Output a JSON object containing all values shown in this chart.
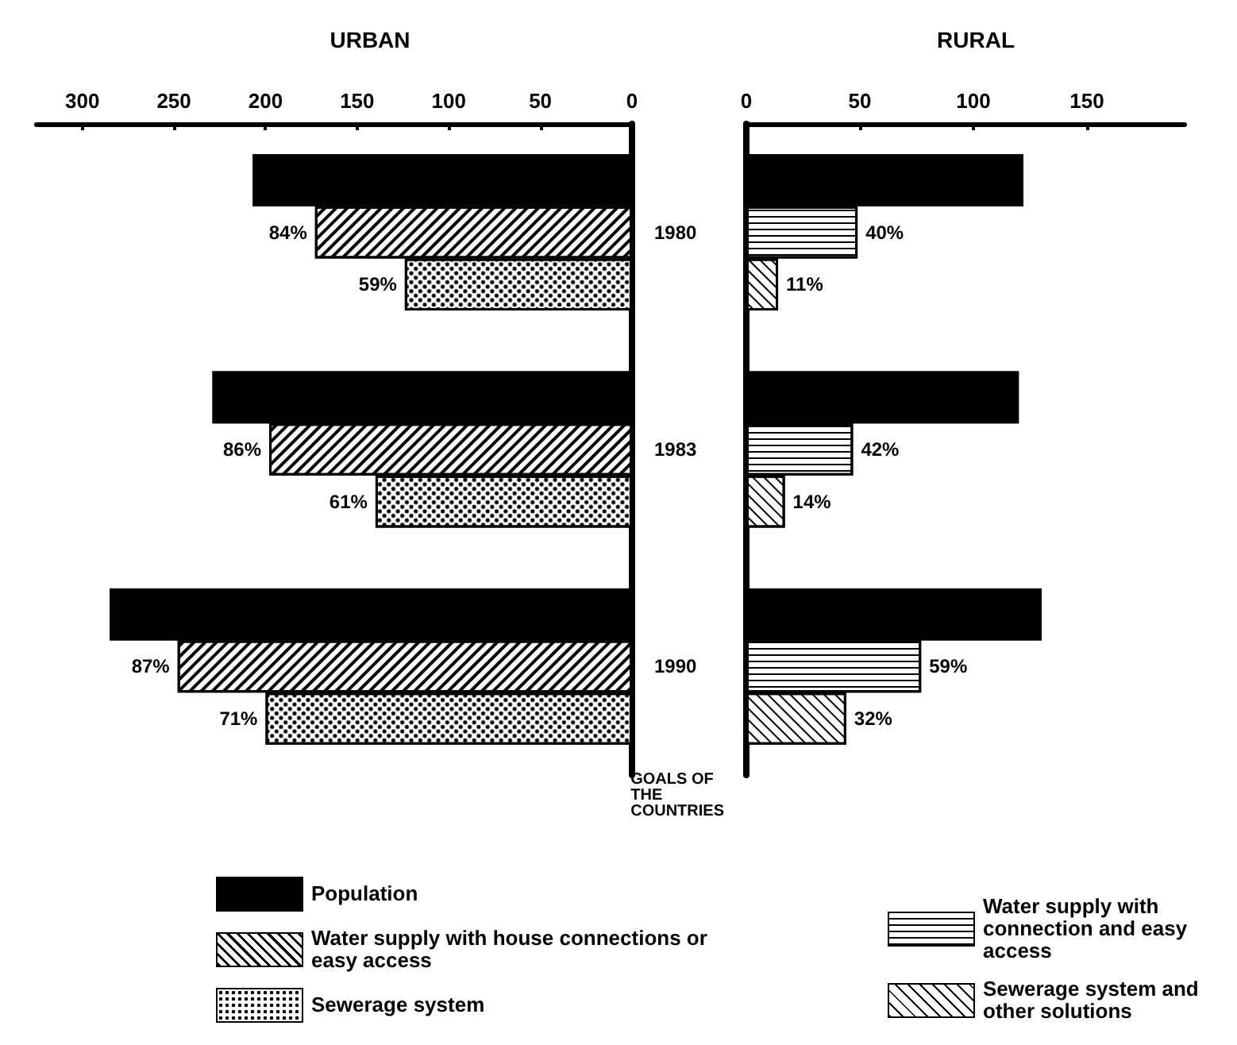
{
  "chart_data": [
    {
      "type": "bar",
      "title": "URBAN",
      "orientation": "horizontal",
      "categories": [
        "1980",
        "1983",
        "1990"
      ],
      "xlim": [
        325,
        0
      ],
      "xticks": [
        0,
        50,
        100,
        150,
        200,
        250,
        300
      ],
      "legend": "bottom right",
      "annotations": [
        "GOALS OF THE COUNTRIES",
        "59%",
        "61%",
        "71%",
        {
          "text": "84%",
          "x": 173,
          "y": "1980"
        },
        {
          "text": "86%",
          "x": 198,
          "y": "1983"
        },
        {
          "text": "87%",
          "x": 248,
          "y": "1990"
        }
      ],
      "series": [
        {
          "name": "Population",
          "color": "#000000",
          "values": [
            207,
            229,
            285
          ]
        },
        {
          "name": "Water supply with house connections or easy access",
          "color": "#ffffff",
          "values": [
            173,
            198,
            248
          ]
        },
        {
          "name": "Sewerage system",
          "color": "#ffffff",
          "values": [
            124,
            140,
            200
          ]
        }
      ]
    },
    {
      "type": "bar",
      "title": "RURAL",
      "orientation": "horizontal",
      "categories": [
        "1980",
        "1983",
        "1990"
      ],
      "xlim": [
        0,
        193
      ],
      "xticks": [
        0,
        50,
        100,
        150
      ],
      "legend": "bottom right",
      "tick_labels": "x",
      "annotations": [
        "11%",
        "14%",
        "32%",
        {
          "text": "40%",
          "x": 49,
          "y": "1980"
        },
        {
          "text": "42%",
          "x": 47,
          "y": "1983"
        },
        {
          "text": "59%",
          "x": 77,
          "y": "1990"
        }
      ],
      "series": [
        {
          "color": "#000000",
          "values": [
            122,
            120,
            130
          ]
        },
        {
          "name": "Water supply with connection and easy access",
          "color": "#ffffff",
          "values": [
            49,
            47,
            77
          ]
        },
        {
          "name": "Sewerage system and other solutions",
          "color": "#ffffff",
          "values": [
            14,
            17,
            44
          ]
        }
      ]
    }
  ]
}
